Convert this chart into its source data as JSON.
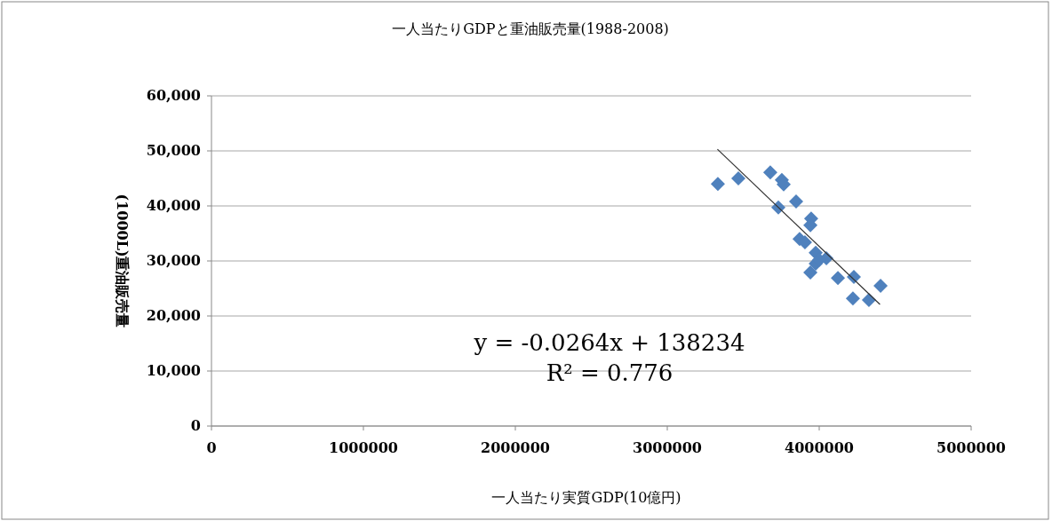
{
  "chart_data": {
    "type": "scatter",
    "title": "一人当たりGDPと重油販売量(1988-2008)",
    "xlabel": "一人当たり実質GDP(10億円)",
    "ylabel": "(1000L)重油販売量",
    "xlim": [
      0,
      5000000
    ],
    "xticks": [
      0,
      1000000,
      2000000,
      3000000,
      4000000,
      5000000
    ],
    "ylim": [
      0,
      60000
    ],
    "yticks": [
      {
        "value": 0,
        "label": "0"
      },
      {
        "value": 10000,
        "label": "10,000"
      },
      {
        "value": 20000,
        "label": "20,000"
      },
      {
        "value": 30000,
        "label": "30,000"
      },
      {
        "value": 40000,
        "label": "40,000"
      },
      {
        "value": 50000,
        "label": "50,000"
      },
      {
        "value": 60000,
        "label": "60,000"
      }
    ],
    "grid": "y",
    "series": [
      {
        "type": "scatter",
        "marker": "diamond",
        "color": "#4f81bd",
        "x": [
          3333000,
          3468000,
          3678000,
          3754000,
          3766000,
          3731000,
          3848000,
          3947000,
          3942000,
          3871000,
          3906000,
          3977000,
          4047000,
          3977000,
          3942000,
          4123000,
          4228000,
          4404000,
          4222000,
          4327000,
          4000000
        ],
        "values": [
          44000,
          45000,
          46100,
          44700,
          43900,
          39700,
          40800,
          37700,
          36500,
          34000,
          33400,
          31500,
          30500,
          29500,
          27900,
          26900,
          27100,
          25500,
          23200,
          22900,
          30200
        ]
      },
      {
        "type": "line",
        "marker": "none",
        "color": "#333333",
        "x": [
          3330000,
          4400000
        ],
        "values": [
          50300,
          22100
        ]
      }
    ],
    "annotations": [
      "y = -0.0264x + 138234",
      "R² = 0.776"
    ]
  }
}
